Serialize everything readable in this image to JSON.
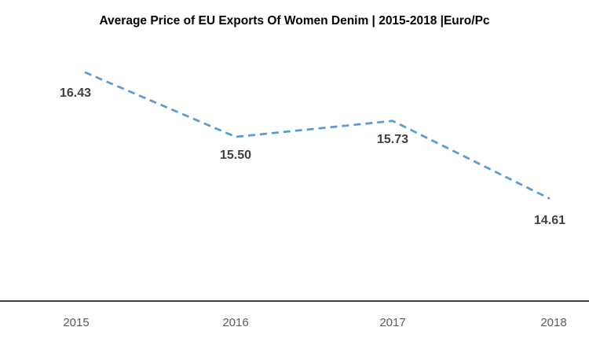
{
  "chart_data": {
    "type": "line",
    "title": "Average Price of EU Exports Of Women Denim | 2015-2018 |Euro/Pc",
    "categories": [
      "2015",
      "2016",
      "2017",
      "2018"
    ],
    "series": [
      {
        "name": "Average Price",
        "values": [
          16.43,
          15.5,
          15.73,
          14.61
        ],
        "labels": [
          "16.43",
          "15.50",
          "15.73",
          "14.61"
        ]
      }
    ],
    "xlabel": "",
    "ylabel": "",
    "ylim": [
      13.5,
      17.0
    ],
    "grid": false,
    "legend": "none",
    "line_style": "dashed",
    "colors": {
      "line": "#5B9BD5",
      "axis": "#000000",
      "data_label": "#404040",
      "tick_label": "#595959",
      "title": "#000000"
    }
  }
}
